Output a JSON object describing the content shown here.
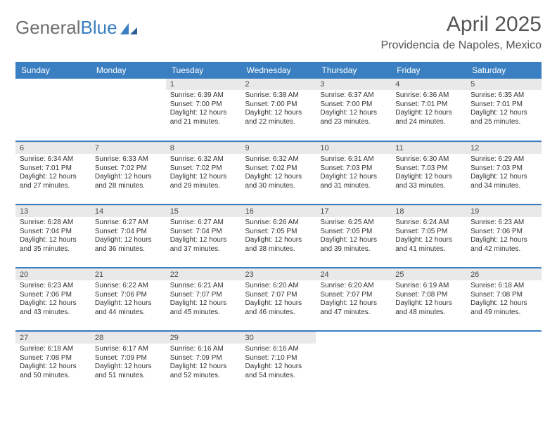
{
  "brand": {
    "name_part1": "General",
    "name_part2": "Blue"
  },
  "title": {
    "month": "April 2025",
    "location": "Providencia de Napoles, Mexico"
  },
  "colors": {
    "header_bg": "#3a7fc1",
    "band_bg": "#e9e9e9",
    "text": "#333333"
  },
  "weekdays": [
    "Sunday",
    "Monday",
    "Tuesday",
    "Wednesday",
    "Thursday",
    "Friday",
    "Saturday"
  ],
  "weeks": [
    [
      {
        "day": "",
        "lines": []
      },
      {
        "day": "",
        "lines": []
      },
      {
        "day": "1",
        "lines": [
          "Sunrise: 6:39 AM",
          "Sunset: 7:00 PM",
          "Daylight: 12 hours",
          "and 21 minutes."
        ]
      },
      {
        "day": "2",
        "lines": [
          "Sunrise: 6:38 AM",
          "Sunset: 7:00 PM",
          "Daylight: 12 hours",
          "and 22 minutes."
        ]
      },
      {
        "day": "3",
        "lines": [
          "Sunrise: 6:37 AM",
          "Sunset: 7:00 PM",
          "Daylight: 12 hours",
          "and 23 minutes."
        ]
      },
      {
        "day": "4",
        "lines": [
          "Sunrise: 6:36 AM",
          "Sunset: 7:01 PM",
          "Daylight: 12 hours",
          "and 24 minutes."
        ]
      },
      {
        "day": "5",
        "lines": [
          "Sunrise: 6:35 AM",
          "Sunset: 7:01 PM",
          "Daylight: 12 hours",
          "and 25 minutes."
        ]
      }
    ],
    [
      {
        "day": "6",
        "lines": [
          "Sunrise: 6:34 AM",
          "Sunset: 7:01 PM",
          "Daylight: 12 hours",
          "and 27 minutes."
        ]
      },
      {
        "day": "7",
        "lines": [
          "Sunrise: 6:33 AM",
          "Sunset: 7:02 PM",
          "Daylight: 12 hours",
          "and 28 minutes."
        ]
      },
      {
        "day": "8",
        "lines": [
          "Sunrise: 6:32 AM",
          "Sunset: 7:02 PM",
          "Daylight: 12 hours",
          "and 29 minutes."
        ]
      },
      {
        "day": "9",
        "lines": [
          "Sunrise: 6:32 AM",
          "Sunset: 7:02 PM",
          "Daylight: 12 hours",
          "and 30 minutes."
        ]
      },
      {
        "day": "10",
        "lines": [
          "Sunrise: 6:31 AM",
          "Sunset: 7:03 PM",
          "Daylight: 12 hours",
          "and 31 minutes."
        ]
      },
      {
        "day": "11",
        "lines": [
          "Sunrise: 6:30 AM",
          "Sunset: 7:03 PM",
          "Daylight: 12 hours",
          "and 33 minutes."
        ]
      },
      {
        "day": "12",
        "lines": [
          "Sunrise: 6:29 AM",
          "Sunset: 7:03 PM",
          "Daylight: 12 hours",
          "and 34 minutes."
        ]
      }
    ],
    [
      {
        "day": "13",
        "lines": [
          "Sunrise: 6:28 AM",
          "Sunset: 7:04 PM",
          "Daylight: 12 hours",
          "and 35 minutes."
        ]
      },
      {
        "day": "14",
        "lines": [
          "Sunrise: 6:27 AM",
          "Sunset: 7:04 PM",
          "Daylight: 12 hours",
          "and 36 minutes."
        ]
      },
      {
        "day": "15",
        "lines": [
          "Sunrise: 6:27 AM",
          "Sunset: 7:04 PM",
          "Daylight: 12 hours",
          "and 37 minutes."
        ]
      },
      {
        "day": "16",
        "lines": [
          "Sunrise: 6:26 AM",
          "Sunset: 7:05 PM",
          "Daylight: 12 hours",
          "and 38 minutes."
        ]
      },
      {
        "day": "17",
        "lines": [
          "Sunrise: 6:25 AM",
          "Sunset: 7:05 PM",
          "Daylight: 12 hours",
          "and 39 minutes."
        ]
      },
      {
        "day": "18",
        "lines": [
          "Sunrise: 6:24 AM",
          "Sunset: 7:05 PM",
          "Daylight: 12 hours",
          "and 41 minutes."
        ]
      },
      {
        "day": "19",
        "lines": [
          "Sunrise: 6:23 AM",
          "Sunset: 7:06 PM",
          "Daylight: 12 hours",
          "and 42 minutes."
        ]
      }
    ],
    [
      {
        "day": "20",
        "lines": [
          "Sunrise: 6:23 AM",
          "Sunset: 7:06 PM",
          "Daylight: 12 hours",
          "and 43 minutes."
        ]
      },
      {
        "day": "21",
        "lines": [
          "Sunrise: 6:22 AM",
          "Sunset: 7:06 PM",
          "Daylight: 12 hours",
          "and 44 minutes."
        ]
      },
      {
        "day": "22",
        "lines": [
          "Sunrise: 6:21 AM",
          "Sunset: 7:07 PM",
          "Daylight: 12 hours",
          "and 45 minutes."
        ]
      },
      {
        "day": "23",
        "lines": [
          "Sunrise: 6:20 AM",
          "Sunset: 7:07 PM",
          "Daylight: 12 hours",
          "and 46 minutes."
        ]
      },
      {
        "day": "24",
        "lines": [
          "Sunrise: 6:20 AM",
          "Sunset: 7:07 PM",
          "Daylight: 12 hours",
          "and 47 minutes."
        ]
      },
      {
        "day": "25",
        "lines": [
          "Sunrise: 6:19 AM",
          "Sunset: 7:08 PM",
          "Daylight: 12 hours",
          "and 48 minutes."
        ]
      },
      {
        "day": "26",
        "lines": [
          "Sunrise: 6:18 AM",
          "Sunset: 7:08 PM",
          "Daylight: 12 hours",
          "and 49 minutes."
        ]
      }
    ],
    [
      {
        "day": "27",
        "lines": [
          "Sunrise: 6:18 AM",
          "Sunset: 7:08 PM",
          "Daylight: 12 hours",
          "and 50 minutes."
        ]
      },
      {
        "day": "28",
        "lines": [
          "Sunrise: 6:17 AM",
          "Sunset: 7:09 PM",
          "Daylight: 12 hours",
          "and 51 minutes."
        ]
      },
      {
        "day": "29",
        "lines": [
          "Sunrise: 6:16 AM",
          "Sunset: 7:09 PM",
          "Daylight: 12 hours",
          "and 52 minutes."
        ]
      },
      {
        "day": "30",
        "lines": [
          "Sunrise: 6:16 AM",
          "Sunset: 7:10 PM",
          "Daylight: 12 hours",
          "and 54 minutes."
        ]
      },
      {
        "day": "",
        "lines": []
      },
      {
        "day": "",
        "lines": []
      },
      {
        "day": "",
        "lines": []
      }
    ]
  ]
}
